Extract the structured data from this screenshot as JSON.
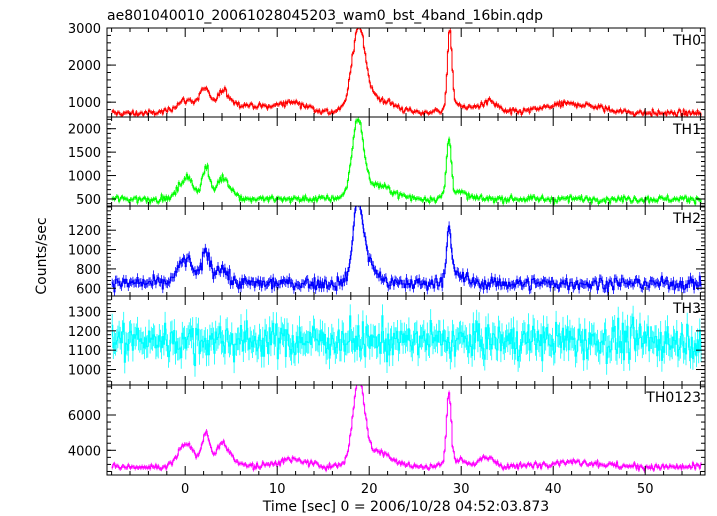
{
  "chart_data": {
    "type": "line",
    "title": "ae801040010_20061028045203_wam0_bst_4band_16bin.qdp",
    "xlabel": "Time [sec] 0 = 2006/10/28 04:52:03.873",
    "ylabel": "Counts/sec",
    "xlim": [
      -8.5,
      56.5
    ],
    "x_ticks": [
      0,
      10,
      20,
      30,
      40,
      50
    ],
    "x_tick_labels": [
      "0",
      "10",
      "20",
      "30",
      "40",
      "50"
    ],
    "grid": false,
    "panels": [
      {
        "name": "TH0",
        "color": "#ff0000",
        "ylim": [
          600,
          3000
        ],
        "y_ticks": [
          1000,
          2000,
          3000
        ],
        "y_tick_labels": [
          "1000",
          "2000",
          "3000"
        ],
        "baseline": 700,
        "features": [
          [
            0.2,
            1.3,
            350
          ],
          [
            2.1,
            0.5,
            550
          ],
          [
            3.9,
            0.6,
            350
          ],
          [
            4.5,
            0.9,
            250
          ],
          [
            6.8,
            1.5,
            200
          ],
          [
            11.5,
            1.8,
            300
          ],
          [
            18.8,
            0.7,
            2100
          ],
          [
            20.5,
            2.0,
            400
          ],
          [
            28.7,
            0.25,
            2050
          ],
          [
            29.6,
            1.5,
            200
          ],
          [
            33.0,
            0.9,
            300
          ],
          [
            42.0,
            3.0,
            250
          ]
        ],
        "noise": 70
      },
      {
        "name": "TH1",
        "color": "#00ff00",
        "ylim": [
          350,
          2250
        ],
        "y_ticks": [
          500,
          1000,
          1500,
          2000
        ],
        "y_tick_labels": [
          "500",
          "1000",
          "1500",
          "2000"
        ],
        "baseline": 500,
        "features": [
          [
            0.1,
            0.8,
            450
          ],
          [
            2.2,
            0.4,
            650
          ],
          [
            3.9,
            0.6,
            300
          ],
          [
            4.5,
            0.8,
            200
          ],
          [
            18.7,
            0.6,
            1550
          ],
          [
            20.5,
            1.8,
            300
          ],
          [
            28.6,
            0.25,
            1200
          ],
          [
            29.4,
            1.0,
            150
          ]
        ],
        "noise": 60
      },
      {
        "name": "TH2",
        "color": "#0000ff",
        "ylim": [
          520,
          1450
        ],
        "y_ticks": [
          600,
          800,
          1000,
          1200
        ],
        "y_tick_labels": [
          "600",
          "800",
          "1000",
          "1200"
        ],
        "baseline": 650,
        "features": [
          [
            0.0,
            0.8,
            250
          ],
          [
            2.2,
            0.4,
            330
          ],
          [
            3.8,
            0.6,
            180
          ],
          [
            18.7,
            0.5,
            700
          ],
          [
            19.5,
            1.0,
            250
          ],
          [
            28.6,
            0.25,
            480
          ],
          [
            29.2,
            1.0,
            100
          ]
        ],
        "noise": 55
      },
      {
        "name": "TH3",
        "color": "#00ffff",
        "ylim": [
          920,
          1380
        ],
        "y_ticks": [
          1000,
          1100,
          1200,
          1300
        ],
        "y_tick_labels": [
          "1000",
          "1100",
          "1200",
          "1300"
        ],
        "baseline": 1150,
        "features": [],
        "noise": 75
      },
      {
        "name": "TH0123",
        "color": "#ff00ff",
        "ylim": [
          2600,
          7700
        ],
        "y_ticks": [
          4000,
          6000
        ],
        "y_tick_labels": [
          "4000",
          "6000"
        ],
        "baseline": 3050,
        "features": [
          [
            0.1,
            0.9,
            1300
          ],
          [
            2.2,
            0.4,
            1800
          ],
          [
            3.8,
            0.6,
            900
          ],
          [
            4.6,
            1.0,
            600
          ],
          [
            11.5,
            1.8,
            400
          ],
          [
            18.8,
            0.6,
            4600
          ],
          [
            20.5,
            1.8,
            900
          ],
          [
            28.6,
            0.25,
            3900
          ],
          [
            29.5,
            1.2,
            400
          ],
          [
            32.8,
            0.8,
            500
          ],
          [
            42.0,
            3.0,
            300
          ]
        ],
        "noise": 150
      }
    ],
    "bin_width": 0.125
  }
}
